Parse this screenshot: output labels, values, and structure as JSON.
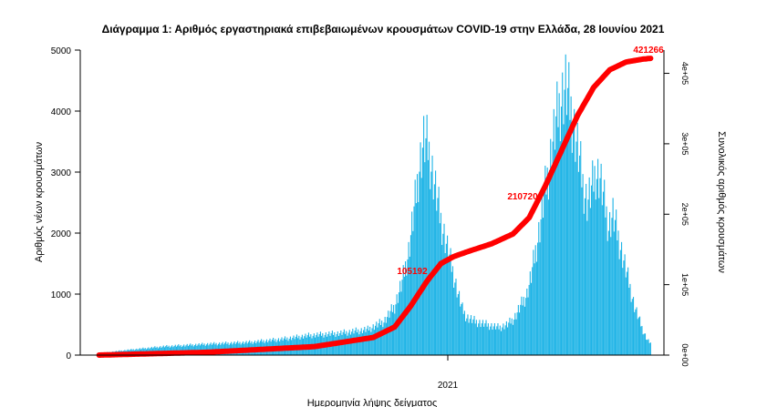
{
  "chart_data": {
    "type": "bar",
    "title": "Διάγραμμα 1: Αριθμός εργαστηριακά επιβεβαιωμένων κρουσμάτων COVID-19 στην Ελλάδα, 28 Ιουνίου 2021",
    "xlabel": "Ημερομηνία λήψης δείγματος",
    "ylabel": "Αριθμός νέων κρουσμάτων",
    "y2label": "Συνολικός αριθμός κρουσμάτων",
    "x_tick_labels": [
      "2021"
    ],
    "y_ticks": [
      "0",
      "1000",
      "2000",
      "3000",
      "4000",
      "5000"
    ],
    "ylim": [
      0,
      5000
    ],
    "y2_ticks": [
      "0e+00",
      "1e+05",
      "2e+05",
      "3e+05",
      "4e+05"
    ],
    "y2lim": [
      0,
      433000
    ],
    "colors": {
      "bars": "#1fb4e6",
      "cumulative": "#ff0000"
    },
    "series": [
      {
        "name": "",
        "kind": "bar",
        "axis": "left",
        "knots": [
          [
            0,
            30
          ],
          [
            25,
            80
          ],
          [
            60,
            140
          ],
          [
            100,
            180
          ],
          [
            140,
            210
          ],
          [
            170,
            260
          ],
          [
            195,
            320
          ],
          [
            225,
            360
          ],
          [
            250,
            420
          ],
          [
            265,
            550
          ],
          [
            275,
            800
          ],
          [
            282,
            1200
          ],
          [
            288,
            1700
          ],
          [
            294,
            2500
          ],
          [
            298,
            3100
          ],
          [
            302,
            3500
          ],
          [
            306,
            3400
          ],
          [
            310,
            3000
          ],
          [
            314,
            2600
          ],
          [
            318,
            2200
          ],
          [
            322,
            1900
          ],
          [
            326,
            1600
          ],
          [
            330,
            1300
          ],
          [
            334,
            1000
          ],
          [
            338,
            750
          ],
          [
            342,
            620
          ],
          [
            350,
            550
          ],
          [
            360,
            500
          ],
          [
            372,
            450
          ],
          [
            380,
            500
          ],
          [
            386,
            600
          ],
          [
            392,
            800
          ],
          [
            398,
            1000
          ],
          [
            402,
            1300
          ],
          [
            406,
            1700
          ],
          [
            410,
            2100
          ],
          [
            414,
            2600
          ],
          [
            418,
            3000
          ],
          [
            422,
            3500
          ],
          [
            426,
            3900
          ],
          [
            430,
            4200
          ],
          [
            434,
            4400
          ],
          [
            438,
            4100
          ],
          [
            442,
            3700
          ],
          [
            446,
            3300
          ],
          [
            450,
            2800
          ],
          [
            454,
            2500
          ],
          [
            458,
            2700
          ],
          [
            462,
            3000
          ],
          [
            466,
            2900
          ],
          [
            470,
            2500
          ],
          [
            474,
            2100
          ],
          [
            478,
            2300
          ],
          [
            482,
            2000
          ],
          [
            486,
            1700
          ],
          [
            490,
            1400
          ],
          [
            494,
            1100
          ],
          [
            498,
            800
          ],
          [
            502,
            600
          ],
          [
            506,
            400
          ],
          [
            510,
            250
          ],
          [
            513,
            200
          ]
        ]
      }
    ],
    "cumulative": {
      "knots": [
        [
          0,
          0
        ],
        [
          100,
          4000
        ],
        [
          200,
          12000
        ],
        [
          255,
          25000
        ],
        [
          275,
          40000
        ],
        [
          290,
          70000
        ],
        [
          305,
          105000
        ],
        [
          318,
          130000
        ],
        [
          330,
          140000
        ],
        [
          345,
          148000
        ],
        [
          365,
          158000
        ],
        [
          385,
          172000
        ],
        [
          400,
          195000
        ],
        [
          415,
          240000
        ],
        [
          430,
          290000
        ],
        [
          445,
          340000
        ],
        [
          460,
          380000
        ],
        [
          475,
          405000
        ],
        [
          490,
          416000
        ],
        [
          505,
          420000
        ],
        [
          513,
          421266
        ]
      ]
    },
    "annotations": [
      "105192",
      "210720",
      "421266"
    ],
    "cumulative_total": 421266
  }
}
